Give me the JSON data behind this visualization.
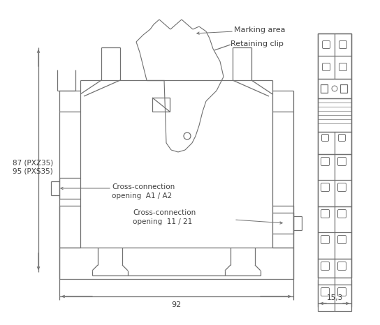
{
  "background_color": "#ffffff",
  "line_color": "#707070",
  "text_color": "#404040",
  "fig_width": 5.44,
  "fig_height": 4.66,
  "dpi": 100,
  "annotations": {
    "marking_area": "Marking area",
    "retaining_clip": "Retaining clip",
    "cross_conn_a1a2_line1": "Cross-connection",
    "cross_conn_a1a2_line2": "opening  A1 / A2",
    "cross_conn_1121_line1": "Cross-connection",
    "cross_conn_1121_line2": "opening  11 / 21",
    "dim_height_line1": "87 (PXZ35)",
    "dim_height_line2": "95 (PXS35)",
    "dim_width": "92",
    "dim_side": "15,3"
  }
}
